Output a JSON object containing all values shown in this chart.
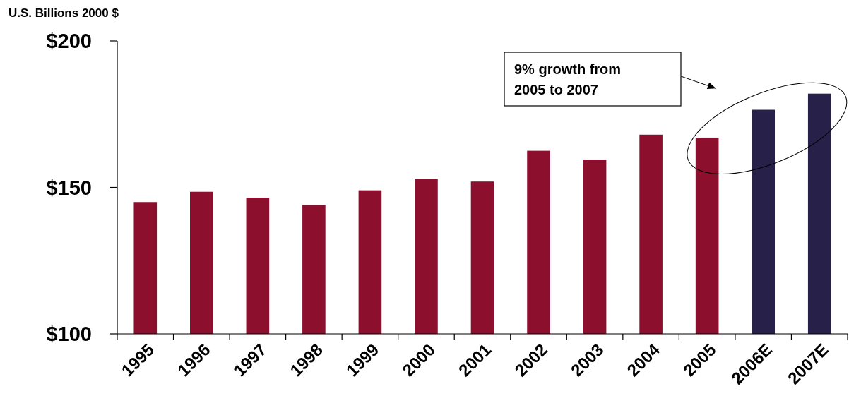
{
  "chart_data": {
    "type": "bar",
    "ylabel": "U.S. Billions 2000 $",
    "categories": [
      "1995",
      "1996",
      "1997",
      "1998",
      "1999",
      "2000",
      "2001",
      "2002",
      "2003",
      "2004",
      "2005",
      "2006E",
      "2007E"
    ],
    "values": [
      145,
      148.5,
      146.5,
      144,
      149,
      153,
      152,
      162.5,
      159.5,
      168,
      167,
      176.5,
      182
    ],
    "colors": [
      "#8c0f2e",
      "#8c0f2e",
      "#8c0f2e",
      "#8c0f2e",
      "#8c0f2e",
      "#8c0f2e",
      "#8c0f2e",
      "#8c0f2e",
      "#8c0f2e",
      "#8c0f2e",
      "#8c0f2e",
      "#27214a",
      "#27214a"
    ],
    "ylim": [
      100,
      200
    ],
    "yticks": [
      {
        "value": 100,
        "label": "$100"
      },
      {
        "value": 150,
        "label": "$150"
      },
      {
        "value": 200,
        "label": "$200"
      }
    ],
    "annotations": [
      "9% growth from 2005 to 2007"
    ]
  }
}
